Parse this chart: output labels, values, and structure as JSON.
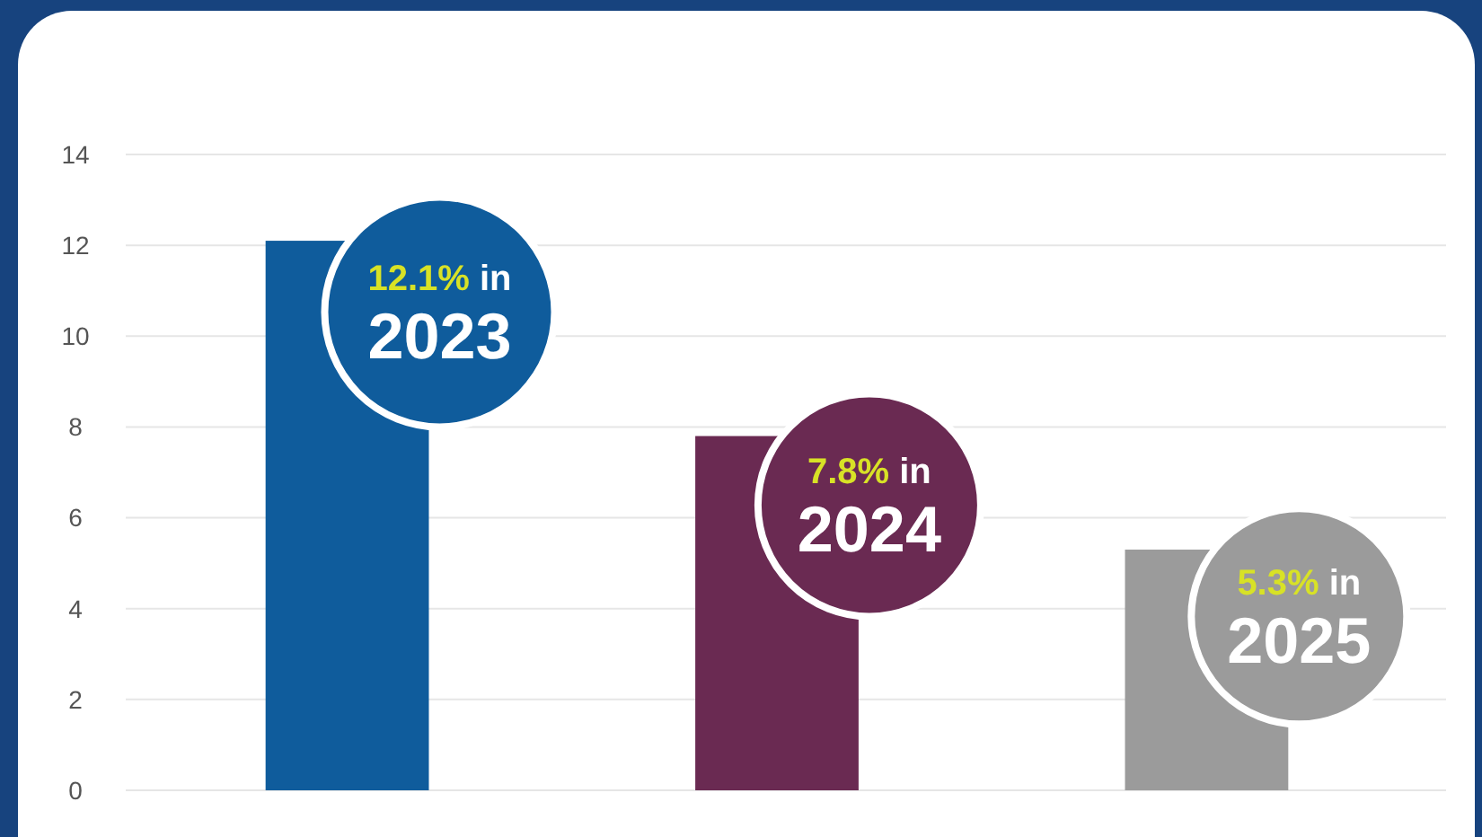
{
  "chart_data": {
    "type": "bar",
    "categories": [
      null,
      null,
      null
    ],
    "values": [
      12.1,
      7.8,
      5.3
    ],
    "colors": [
      "#0f5c9c",
      "#6a2a52",
      "#9b9b9b"
    ],
    "value_labels": [
      "12.1% in 2023",
      "7.8% in 2024",
      "5.3% in 2025"
    ],
    "ylim": [
      0,
      14
    ],
    "yticks": [
      0,
      2,
      4,
      6,
      8,
      10,
      12,
      14
    ],
    "grid": "y"
  }
}
